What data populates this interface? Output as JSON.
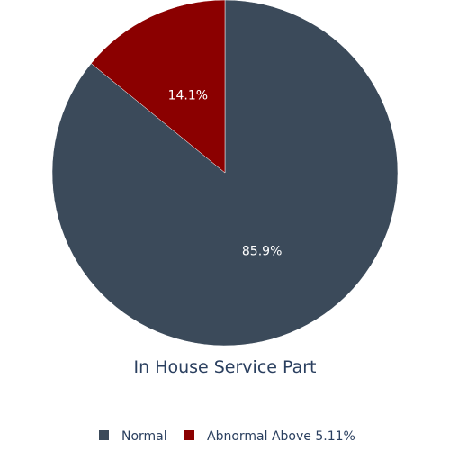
{
  "chart_data": {
    "type": "pie",
    "title": "In House Service Part",
    "slices": [
      {
        "name": "Normal",
        "value": 85.9,
        "label": "85.9%",
        "color": "#3b4a5a"
      },
      {
        "name": "Abnormal Above 5.11%",
        "value": 14.1,
        "label": "14.1%",
        "color": "#8b0000"
      }
    ],
    "start": "12 o'clock",
    "direction": "clockwise",
    "legend_position": "bottom-center"
  }
}
